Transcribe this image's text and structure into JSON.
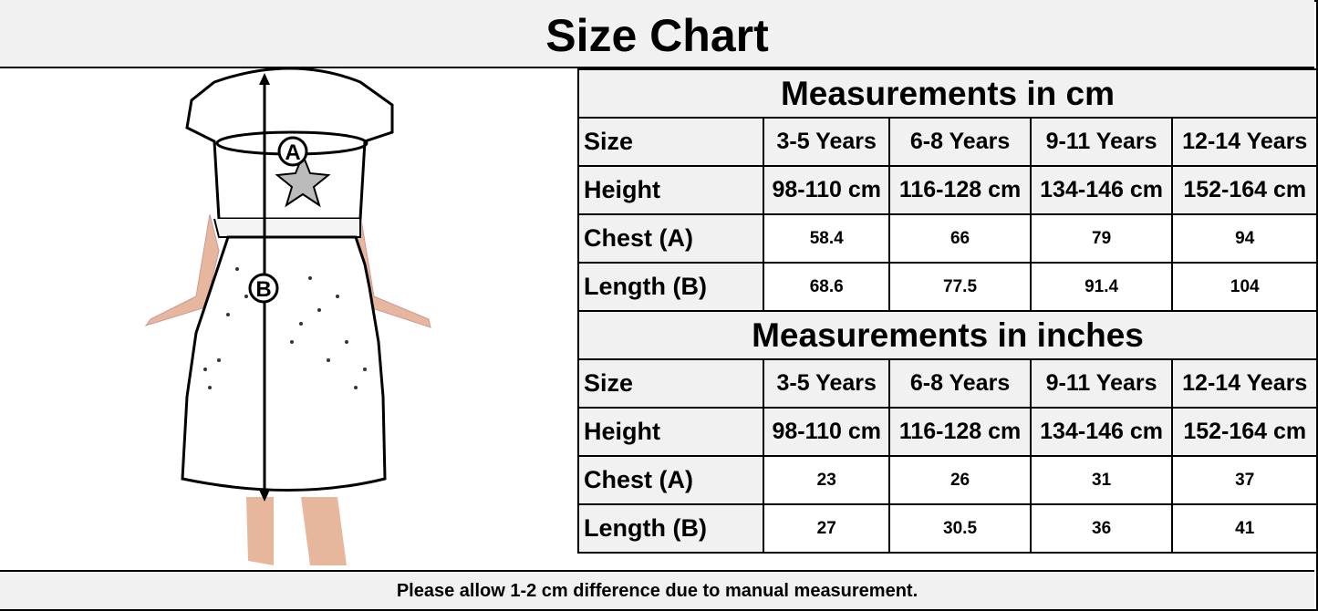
{
  "title": "Size Chart",
  "illustration": {
    "marker_a": "A",
    "marker_b": "B"
  },
  "tables": [
    {
      "heading": "Measurements in cm",
      "columns": [
        "Size",
        "3-5 Years",
        "6-8 Years",
        "9-11 Years",
        "12-14 Years"
      ],
      "rows": [
        {
          "label": "Height",
          "values": [
            "98-110 cm",
            "116-128 cm",
            "134-146 cm",
            "152-164 cm"
          ]
        },
        {
          "label": "Chest (A)",
          "values": [
            "58.4",
            "66",
            "79",
            "94"
          ]
        },
        {
          "label": "Length (B)",
          "values": [
            "68.6",
            "77.5",
            "91.4",
            "104"
          ]
        }
      ]
    },
    {
      "heading": "Measurements in inches",
      "columns": [
        "Size",
        "3-5 Years",
        "6-8 Years",
        "9-11 Years",
        "12-14 Years"
      ],
      "rows": [
        {
          "label": "Height",
          "values": [
            "98-110 cm",
            "116-128 cm",
            "134-146 cm",
            "152-164 cm"
          ]
        },
        {
          "label": "Chest (A)",
          "values": [
            "23",
            "26",
            "31",
            "37"
          ]
        },
        {
          "label": "Length (B)",
          "values": [
            "27",
            "30.5",
            "36",
            "41"
          ]
        }
      ]
    }
  ],
  "footer": "Please allow 1-2 cm difference due to manual measurement."
}
